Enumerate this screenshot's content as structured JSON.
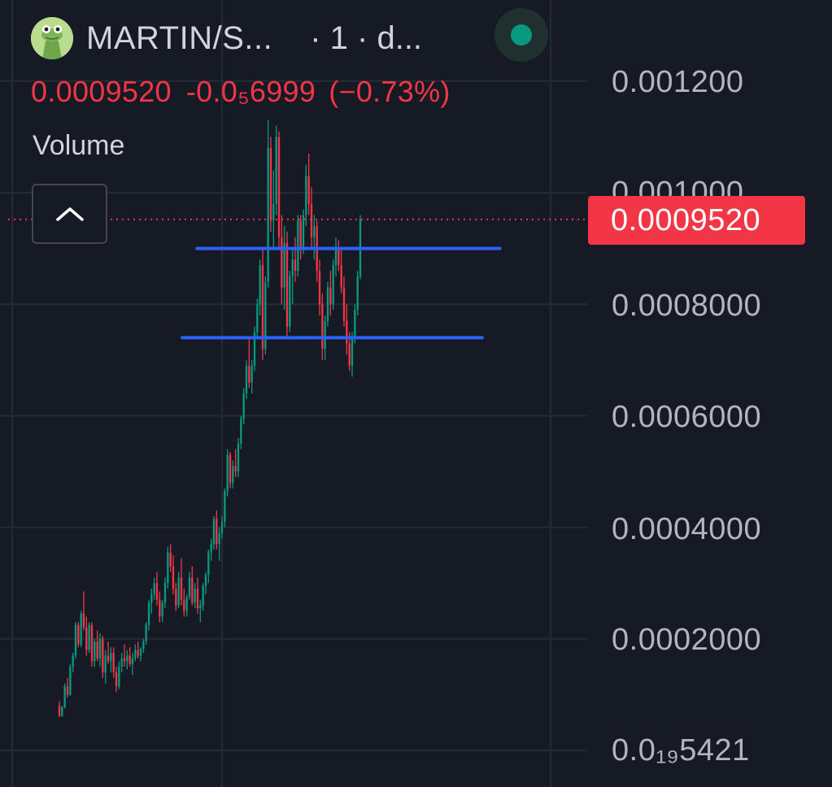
{
  "header": {
    "symbol_label": "MARTIN/S...",
    "interval_label": "· 1 · d...",
    "status_color": "#089981",
    "avatar_icon": "frog-avatar-icon"
  },
  "price_info": {
    "last": "0.0009520",
    "change": "-0.0₅6999",
    "change_pct": "(−0.73%)",
    "color": "#f23645"
  },
  "volume_label": "Volume",
  "collapse_icon": "chevron-up-icon",
  "price_badge": {
    "value": "0.0009520",
    "color": "#f23645"
  },
  "axis": {
    "ticks": [
      {
        "label": "0.001200",
        "value": 0.0012
      },
      {
        "label": "0.001000",
        "value": 0.001
      },
      {
        "label": "0.0008000",
        "value": 0.0008
      },
      {
        "label": "0.0006000",
        "value": 0.0006
      },
      {
        "label": "0.0004000",
        "value": 0.0004
      },
      {
        "label": "0.0002000",
        "value": 0.0002
      }
    ],
    "bottom_label": "0.0₁₉5421"
  },
  "chart_data": {
    "type": "candlestick",
    "ylim": [
      0,
      0.0012
    ],
    "grid": true,
    "last_price": 0.000952,
    "up_color": "#089981",
    "down_color": "#f23645",
    "line_color": "#2962ff",
    "horizontal_lines": [
      {
        "value": 0.0009,
        "x_from": 0.335,
        "x_to": 0.85
      },
      {
        "value": 0.00074,
        "x_from": 0.31,
        "x_to": 0.82
      }
    ],
    "candles": [
      [
        8e-05,
        8.8e-05,
        6e-05,
        6.2e-05
      ],
      [
        6.2e-05,
        8e-05,
        6e-05,
        7.8e-05
      ],
      [
        7.8e-05,
        0.00012,
        7.5e-05,
        0.000115
      ],
      [
        0.000115,
        0.00013,
        9.5e-05,
        0.0001
      ],
      [
        0.0001,
        0.000155,
        9.8e-05,
        0.00015
      ],
      [
        0.00015,
        0.000175,
        0.00014,
        0.00017
      ],
      [
        0.00017,
        0.00023,
        0.000165,
        0.000225
      ],
      [
        0.000225,
        0.00023,
        0.000185,
        0.00019
      ],
      [
        0.00019,
        0.00025,
        0.000185,
        0.000245
      ],
      [
        0.000245,
        0.000285,
        0.000215,
        0.00022
      ],
      [
        0.00022,
        0.00024,
        0.00017,
        0.00018
      ],
      [
        0.00018,
        0.00023,
        0.000175,
        0.000225
      ],
      [
        0.000225,
        0.00023,
        0.00015,
        0.00016
      ],
      [
        0.00016,
        0.0002,
        0.00015,
        0.000195
      ],
      [
        0.000195,
        0.000215,
        0.00016,
        0.000165
      ],
      [
        0.000165,
        0.00021,
        0.00015,
        0.0002
      ],
      [
        0.0002,
        0.000205,
        0.00013,
        0.00014
      ],
      [
        0.00014,
        0.00018,
        0.00012,
        0.00017
      ],
      [
        0.00017,
        0.000195,
        0.000155,
        0.00016
      ],
      [
        0.00016,
        0.000185,
        0.00014,
        0.000175
      ],
      [
        0.000175,
        0.000185,
        0.00013,
        0.00014
      ],
      [
        0.00014,
        0.00015,
        0.000105,
        0.000115
      ],
      [
        0.000115,
        0.00016,
        0.00011,
        0.00015
      ],
      [
        0.00015,
        0.000175,
        0.00014,
        0.000165
      ],
      [
        0.000165,
        0.00019,
        0.00015,
        0.00016
      ],
      [
        0.00016,
        0.00018,
        0.000145,
        0.00017
      ],
      [
        0.00017,
        0.000185,
        0.00015,
        0.000155
      ],
      [
        0.000155,
        0.000175,
        0.000135,
        0.000165
      ],
      [
        0.000165,
        0.00019,
        0.00016,
        0.00018
      ],
      [
        0.00018,
        0.000195,
        0.000165,
        0.00017
      ],
      [
        0.00017,
        0.000185,
        0.00016,
        0.000182
      ],
      [
        0.000182,
        0.0002,
        0.000175,
        0.000195
      ],
      [
        0.000195,
        0.00023,
        0.00019,
        0.000225
      ],
      [
        0.000225,
        0.00027,
        0.000215,
        0.000265
      ],
      [
        0.000265,
        0.00029,
        0.000245,
        0.00028
      ],
      [
        0.00028,
        0.00031,
        0.00027,
        0.0003
      ],
      [
        0.0003,
        0.00032,
        0.00026,
        0.00027
      ],
      [
        0.00027,
        0.000285,
        0.00023,
        0.00024
      ],
      [
        0.00024,
        0.00027,
        0.00023,
        0.000265
      ],
      [
        0.000265,
        0.00031,
        0.000255,
        0.0003
      ],
      [
        0.0003,
        0.000365,
        0.00029,
        0.000355
      ],
      [
        0.000355,
        0.00037,
        0.00032,
        0.00033
      ],
      [
        0.00033,
        0.00035,
        0.00028,
        0.00029
      ],
      [
        0.00029,
        0.0003,
        0.00025,
        0.00026
      ],
      [
        0.00026,
        0.00032,
        0.000255,
        0.00031
      ],
      [
        0.00031,
        0.000345,
        0.00026,
        0.00027
      ],
      [
        0.00027,
        0.00029,
        0.00024,
        0.00025
      ],
      [
        0.00025,
        0.00028,
        0.00024,
        0.000275
      ],
      [
        0.000275,
        0.00032,
        0.00027,
        0.00031
      ],
      [
        0.00031,
        0.00033,
        0.00026,
        0.000265
      ],
      [
        0.000265,
        0.0003,
        0.000255,
        0.00029
      ],
      [
        0.00029,
        0.00031,
        0.000245,
        0.000255
      ],
      [
        0.000255,
        0.00027,
        0.00023,
        0.00026
      ],
      [
        0.00026,
        0.0003,
        0.00025,
        0.000295
      ],
      [
        0.000295,
        0.00032,
        0.00028,
        0.000315
      ],
      [
        0.000315,
        0.00036,
        0.0003,
        0.000355
      ],
      [
        0.000355,
        0.00038,
        0.00034,
        0.00037
      ],
      [
        0.00037,
        0.00042,
        0.00036,
        0.000415
      ],
      [
        0.000415,
        0.00043,
        0.00036,
        0.00037
      ],
      [
        0.00037,
        0.0004,
        0.00034,
        0.00039
      ],
      [
        0.00039,
        0.00042,
        0.00038,
        0.00041
      ],
      [
        0.00041,
        0.00047,
        0.0004,
        0.000465
      ],
      [
        0.000465,
        0.00054,
        0.000455,
        0.00053
      ],
      [
        0.00053,
        0.000535,
        0.00047,
        0.00048
      ],
      [
        0.00048,
        0.00052,
        0.00047,
        0.00051
      ],
      [
        0.00051,
        0.00054,
        0.00049,
        0.0005
      ],
      [
        0.0005,
        0.00056,
        0.00049,
        0.00055
      ],
      [
        0.00055,
        0.0006,
        0.00054,
        0.000595
      ],
      [
        0.000595,
        0.00065,
        0.000585,
        0.00064
      ],
      [
        0.00064,
        0.0007,
        0.00063,
        0.00069
      ],
      [
        0.00069,
        0.00074,
        0.00065,
        0.00066
      ],
      [
        0.00066,
        0.0007,
        0.00064,
        0.00069
      ],
      [
        0.00069,
        0.00076,
        0.00068,
        0.00075
      ],
      [
        0.00075,
        0.00081,
        0.00074,
        0.0008
      ],
      [
        0.0008,
        0.00088,
        0.00078,
        0.00087
      ],
      [
        0.00087,
        0.0009,
        0.0007,
        0.00072
      ],
      [
        0.00072,
        0.00085,
        0.00071,
        0.00084
      ],
      [
        0.00084,
        0.00113,
        0.00083,
        0.00108
      ],
      [
        0.00108,
        0.0011,
        0.00093,
        0.00095
      ],
      [
        0.00095,
        0.00104,
        0.0009,
        0.00098
      ],
      [
        0.00098,
        0.00112,
        0.00096,
        0.0011
      ],
      [
        0.0011,
        0.00111,
        0.0009,
        0.00092
      ],
      [
        0.00092,
        0.00096,
        0.0008,
        0.00083
      ],
      [
        0.00083,
        0.00094,
        0.00079,
        0.00091
      ],
      [
        0.00091,
        0.00093,
        0.00074,
        0.00076
      ],
      [
        0.00076,
        0.00086,
        0.00075,
        0.00085
      ],
      [
        0.00085,
        0.0009,
        0.0008,
        0.00088
      ],
      [
        0.00088,
        0.00092,
        0.00084,
        0.00086
      ],
      [
        0.00086,
        0.00096,
        0.00085,
        0.00095
      ],
      [
        0.00095,
        0.00096,
        0.00088,
        0.0009
      ],
      [
        0.0009,
        0.00097,
        0.00089,
        0.00096
      ],
      [
        0.00096,
        0.00105,
        0.00094,
        0.00103
      ],
      [
        0.00103,
        0.00107,
        0.00096,
        0.00098
      ],
      [
        0.00098,
        0.00101,
        0.0009,
        0.00092
      ],
      [
        0.00092,
        0.00096,
        0.00088,
        0.00094
      ],
      [
        0.00094,
        0.00095,
        0.00084,
        0.00086
      ],
      [
        0.00086,
        0.00088,
        0.00078,
        0.0008
      ],
      [
        0.0008,
        0.00082,
        0.0007,
        0.00072
      ],
      [
        0.00072,
        0.00078,
        0.0007,
        0.00077
      ],
      [
        0.00077,
        0.00084,
        0.00076,
        0.00083
      ],
      [
        0.00083,
        0.00086,
        0.00078,
        0.0008
      ],
      [
        0.0008,
        0.00088,
        0.00079,
        0.00087
      ],
      [
        0.00087,
        0.00092,
        0.00085,
        0.0009
      ],
      [
        0.0009,
        0.000915,
        0.00086,
        0.00087
      ],
      [
        0.00087,
        0.0009,
        0.00082,
        0.00083
      ],
      [
        0.00083,
        0.00085,
        0.00076,
        0.00077
      ],
      [
        0.00077,
        0.0008,
        0.00071,
        0.00073
      ],
      [
        0.00073,
        0.00075,
        0.00068,
        0.00069
      ],
      [
        0.00069,
        0.00075,
        0.00067,
        0.00074
      ],
      [
        0.00074,
        0.0008,
        0.00073,
        0.00079
      ],
      [
        0.00079,
        0.00086,
        0.00078,
        0.00085
      ],
      [
        0.00085,
        0.00096,
        0.000845,
        0.000952
      ]
    ]
  }
}
